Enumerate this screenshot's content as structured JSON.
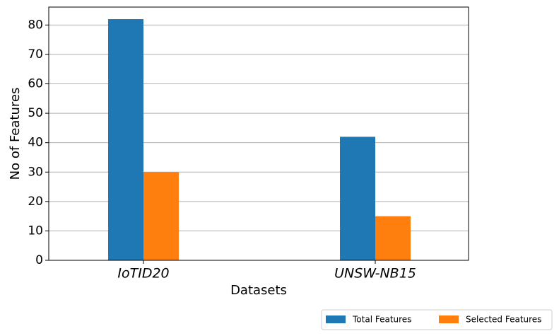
{
  "chart_data": {
    "type": "bar",
    "categories": [
      "IoTID20",
      "UNSW-NB15"
    ],
    "series": [
      {
        "name": "Total Features",
        "color": "#1f77b4",
        "values": [
          82,
          42
        ]
      },
      {
        "name": "Selected Features",
        "color": "#ff7f0e",
        "values": [
          30,
          15
        ]
      }
    ],
    "x_label": "Datasets",
    "y_label": "No of Features",
    "ylim": [
      0,
      86.1
    ],
    "yticks": [
      0,
      10,
      20,
      30,
      40,
      50,
      60,
      70,
      80
    ],
    "grid": true,
    "legend": "bottom-right"
  }
}
